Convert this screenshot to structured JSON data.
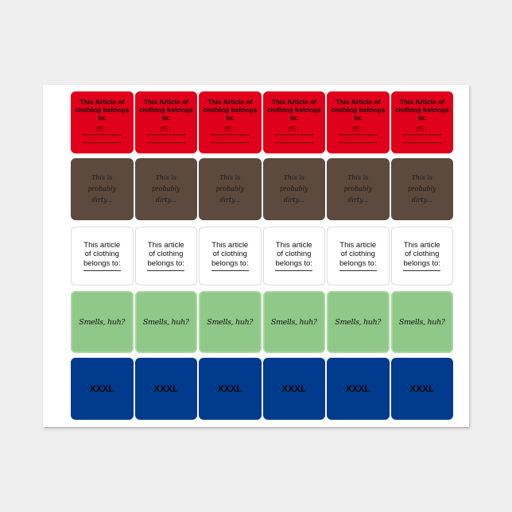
{
  "sheet": {
    "columns": 6,
    "rows": [
      {
        "name": "belongs-to-me-label",
        "color": "#e0001b",
        "text": "This Article of clothing belongs to:",
        "handwritten": "ME!"
      },
      {
        "name": "probably-dirty-label",
        "color": "#5c4a3e",
        "text": "This is probably dirty..."
      },
      {
        "name": "belongs-to-blank-label",
        "color": "#ffffff",
        "text": "This article of clothing belongs to:"
      },
      {
        "name": "smells-huh-label",
        "color": "#8fc888",
        "text": "Smells, huh?"
      },
      {
        "name": "xxxl-label",
        "color": "#003b8e",
        "text": "XXXL"
      }
    ]
  }
}
